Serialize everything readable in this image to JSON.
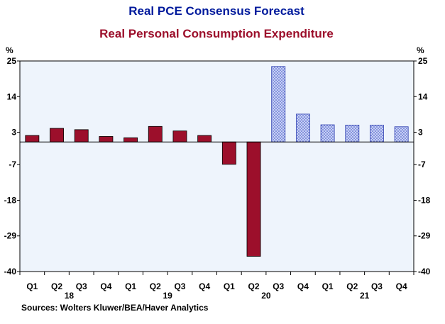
{
  "chart_data": {
    "type": "bar",
    "title": "Real PCE Consensus Forecast",
    "subtitle": "Real Personal Consumption Expenditure",
    "ylabel_left": "%",
    "ylabel_right": "%",
    "ylim": [
      -40,
      25
    ],
    "yticks": [
      25,
      14,
      3,
      -7,
      -18,
      -29,
      -40
    ],
    "categories": [
      "Q1",
      "Q2",
      "Q3",
      "Q4",
      "Q1",
      "Q2",
      "Q3",
      "Q4",
      "Q1",
      "Q2",
      "Q3",
      "Q4",
      "Q1",
      "Q2",
      "Q3",
      "Q4"
    ],
    "years": [
      {
        "label": "18",
        "start": 0,
        "end": 3
      },
      {
        "label": "19",
        "start": 4,
        "end": 7
      },
      {
        "label": "20",
        "start": 8,
        "end": 11
      },
      {
        "label": "21",
        "start": 12,
        "end": 15
      }
    ],
    "series": [
      {
        "style": "actual",
        "values": [
          2.0,
          4.2,
          3.8,
          1.7,
          1.3,
          4.8,
          3.4,
          2.0,
          -6.9,
          -35.3,
          null,
          null,
          null,
          null,
          null,
          null
        ]
      },
      {
        "style": "forecast",
        "values": [
          null,
          null,
          null,
          null,
          null,
          null,
          null,
          null,
          null,
          null,
          23.3,
          8.6,
          5.3,
          5.2,
          5.2,
          4.7
        ]
      }
    ],
    "colors": {
      "actual_fill": "#9c0f2b",
      "forecast_fill": "#aab7ef",
      "forecast_stroke": "#3040b0",
      "plot_background": "#eef4fc",
      "title": "#001a9c",
      "subtitle": "#9c0f2b"
    },
    "source": "Sources:   Wolters Kluwer/BEA/Haver Analytics"
  }
}
